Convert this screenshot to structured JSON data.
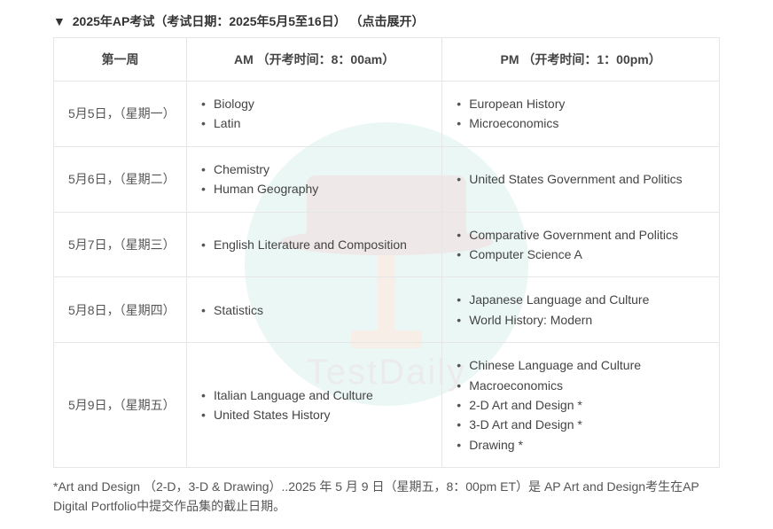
{
  "header": {
    "triangle": "▼",
    "title": "2025年AP考试（考试日期：2025年5月5至16日）",
    "expand_hint": "（点击展开）"
  },
  "table": {
    "columns": {
      "week": "第一周",
      "am": "AM （开考时间：8：00am）",
      "pm": "PM （开考时间：1：00pm）"
    },
    "rows": [
      {
        "date": "5月5日，（星期一）",
        "am": [
          "Biology",
          "Latin"
        ],
        "pm": [
          "European History",
          "Microeconomics"
        ]
      },
      {
        "date": "5月6日，（星期二）",
        "am": [
          "Chemistry",
          "Human Geography"
        ],
        "pm": [
          "United States Government and Politics"
        ]
      },
      {
        "date": "5月7日，（星期三）",
        "am": [
          "English Literature and Composition"
        ],
        "pm": [
          "Comparative Government and Politics",
          "Computer Science A"
        ]
      },
      {
        "date": "5月8日，（星期四）",
        "am": [
          "Statistics"
        ],
        "pm": [
          "Japanese Language and Culture",
          "World History: Modern"
        ]
      },
      {
        "date": "5月9日，（星期五）",
        "am": [
          "Italian Language and Culture",
          "United States History"
        ],
        "pm": [
          "Chinese Language and Culture",
          "Macroeconomics",
          "2-D Art and Design *",
          "3-D Art and Design *",
          "Drawing *"
        ]
      }
    ]
  },
  "footnote": "*Art and Design （2-D，3-D & Drawing）..2025 年 5 月 9 日（星期五，8：00pm ET）是 AP Art and Design考生在AP Digital Portfolio中提交作品集的截止日期。",
  "watermark_text": "TestDaily",
  "colors": {
    "border": "#e6e6e6",
    "text": "#444444",
    "watermark_circle": "#5fc4b0"
  }
}
